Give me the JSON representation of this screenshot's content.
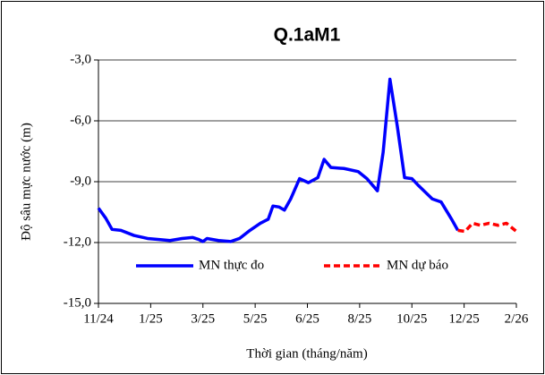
{
  "chart_data": {
    "type": "line",
    "title": "Q.1aM1",
    "xlabel": "Thời gian (tháng/năm)",
    "ylabel": "Độ sâu mực nước (m)",
    "xlim": [
      0,
      8
    ],
    "xticks": [
      {
        "value": 0,
        "label": "11/24"
      },
      {
        "value": 1,
        "label": "1/25"
      },
      {
        "value": 2,
        "label": "3/25"
      },
      {
        "value": 3,
        "label": "5/25"
      },
      {
        "value": 4,
        "label": "6/25"
      },
      {
        "value": 5,
        "label": "8/25"
      },
      {
        "value": 6,
        "label": "10/25"
      },
      {
        "value": 7,
        "label": "12/25"
      },
      {
        "value": 8,
        "label": "2/26"
      }
    ],
    "ylim": [
      -15,
      -3
    ],
    "yticks": [
      {
        "value": -15,
        "label": "-15,0"
      },
      {
        "value": -12,
        "label": "-12,0"
      },
      {
        "value": -9,
        "label": "-9,0"
      },
      {
        "value": -6,
        "label": "-6,0"
      },
      {
        "value": -3,
        "label": "-3,0"
      }
    ],
    "grid": true,
    "series": [
      {
        "name": "MN thực đo",
        "color": "#0000ff",
        "dashed": false,
        "x": [
          0,
          0.14,
          0.26,
          0.43,
          0.68,
          0.94,
          1.16,
          1.37,
          1.6,
          1.8,
          1.92,
          2.0,
          2.08,
          2.3,
          2.53,
          2.7,
          2.9,
          3.1,
          3.25,
          3.34,
          3.46,
          3.56,
          3.68,
          3.85,
          4.02,
          4.2,
          4.32,
          4.45,
          4.7,
          4.97,
          5.14,
          5.34,
          5.45,
          5.58,
          5.72,
          5.86,
          6.0,
          6.13,
          6.39,
          6.56,
          6.76,
          6.88
        ],
        "values": [
          -10.3,
          -10.8,
          -11.35,
          -11.4,
          -11.65,
          -11.8,
          -11.85,
          -11.9,
          -11.8,
          -11.75,
          -11.85,
          -11.95,
          -11.8,
          -11.9,
          -11.95,
          -11.8,
          -11.4,
          -11.05,
          -10.85,
          -10.2,
          -10.25,
          -10.4,
          -9.85,
          -8.85,
          -9.05,
          -8.8,
          -7.9,
          -8.3,
          -8.35,
          -8.5,
          -8.85,
          -9.45,
          -7.55,
          -3.95,
          -6.25,
          -8.8,
          -8.85,
          -9.2,
          -9.85,
          -10.0,
          -10.85,
          -11.4
        ]
      },
      {
        "name": "MN dự báo",
        "color": "#ff0000",
        "dashed": true,
        "x": [
          6.88,
          7.02,
          7.16,
          7.31,
          7.48,
          7.65,
          7.81,
          8.0
        ],
        "values": [
          -11.4,
          -11.45,
          -11.05,
          -11.15,
          -11.05,
          -11.15,
          -11.05,
          -11.45
        ]
      }
    ]
  }
}
